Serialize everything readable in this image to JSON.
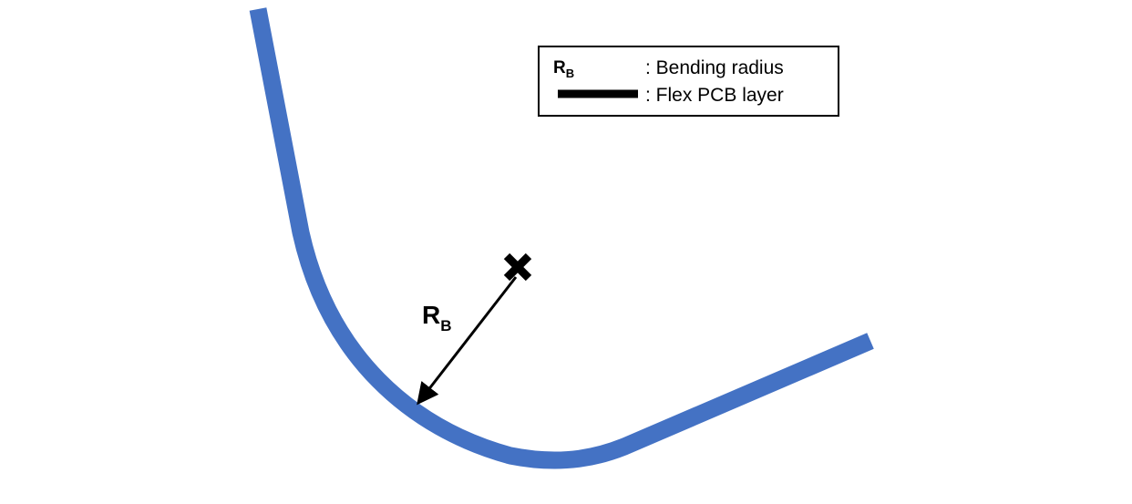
{
  "colors": {
    "flex_pcb": "#4472C4",
    "arrow": "#000000",
    "center_mark": "#000000",
    "legend_border": "#000000",
    "background": "#FFFFFF"
  },
  "radius_label": {
    "main": "R",
    "sub": "B"
  },
  "legend": {
    "symbol_main": "R",
    "symbol_sub": "B",
    "radius_text": ": Bending radius",
    "layer_text": ": Flex PCB layer"
  },
  "icons": {
    "center_mark": "cross-mark-icon"
  }
}
